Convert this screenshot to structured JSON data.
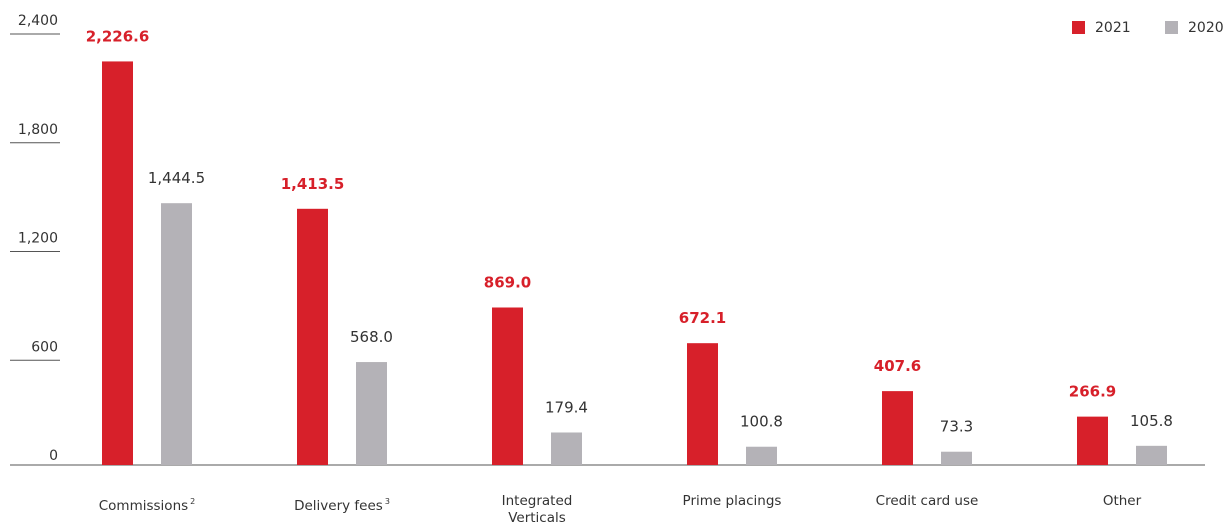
{
  "chart_data": {
    "type": "bar",
    "categories": [
      "Commissions",
      "Delivery fees",
      "Integrated Verticals",
      "Prime placings",
      "Credit card use",
      "Other"
    ],
    "category_notes": [
      "2",
      "3",
      null,
      null,
      null,
      null
    ],
    "series": [
      {
        "name": "2021",
        "color": "#d7202a",
        "values": [
          2226.6,
          1413.5,
          869.0,
          672.1,
          407.6,
          266.9
        ],
        "value_labels": [
          "2,226.6",
          "1,413.5",
          "869.0",
          "672.1",
          "407.6",
          "266.9"
        ]
      },
      {
        "name": "2020",
        "color": "#b4b2b7",
        "values": [
          1444.5,
          568.0,
          179.4,
          100.8,
          73.3,
          105.8
        ],
        "value_labels": [
          "1,444.5",
          "568.0",
          "179.4",
          "100.8",
          "73.3",
          "105.8"
        ]
      }
    ],
    "ylim": [
      0,
      2400
    ],
    "yticks": [
      0,
      600,
      {
        "value": 1200,
        "label": "1,200"
      },
      {
        "value": 1800,
        "label": "1,800"
      },
      {
        "value": 2400,
        "label": "2,400"
      }
    ],
    "legend": "top-right"
  }
}
